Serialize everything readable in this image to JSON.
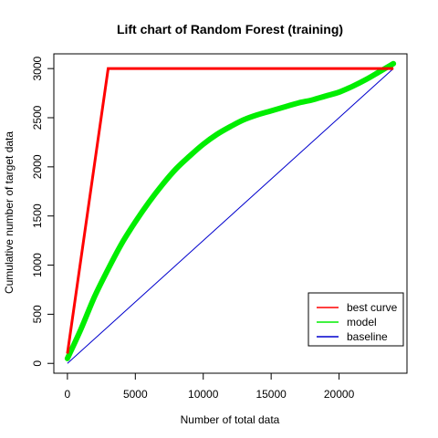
{
  "chart_data": {
    "type": "line",
    "title": "Lift chart of Random Forest (training)",
    "xlabel": "Number of total data",
    "ylabel": "Cumulative number of target data",
    "xlim": [
      -1000,
      25000
    ],
    "ylim": [
      -100,
      3150
    ],
    "xticks": [
      0,
      5000,
      10000,
      15000,
      20000
    ],
    "xtick_labels": [
      "0",
      "5000",
      "10000",
      "15000",
      "20000"
    ],
    "yticks": [
      0,
      500,
      1000,
      1500,
      2000,
      2500,
      3000
    ],
    "ytick_labels": [
      "0",
      "500",
      "1000",
      "1500",
      "2000",
      "2500",
      "3000"
    ],
    "grid": false,
    "legend_position": "bottom-right",
    "series": [
      {
        "name": "best curve",
        "color": "#ff0000",
        "x": [
          0,
          3000,
          24000
        ],
        "y": [
          100,
          3000,
          3000
        ]
      },
      {
        "name": "model",
        "color": "#00ee00",
        "x": [
          0,
          1000,
          2000,
          3000,
          4000,
          5000,
          6000,
          7000,
          8000,
          9000,
          10000,
          11000,
          12000,
          13000,
          14000,
          15000,
          16000,
          17000,
          18000,
          19000,
          20000,
          21000,
          22000,
          23000,
          24000
        ],
        "y": [
          50,
          350,
          680,
          960,
          1220,
          1440,
          1640,
          1820,
          1980,
          2110,
          2230,
          2330,
          2410,
          2480,
          2530,
          2570,
          2610,
          2650,
          2680,
          2720,
          2760,
          2820,
          2890,
          2970,
          3050
        ]
      },
      {
        "name": "baseline",
        "color": "#0000cd",
        "x": [
          0,
          24000
        ],
        "y": [
          0,
          3000
        ]
      }
    ]
  }
}
